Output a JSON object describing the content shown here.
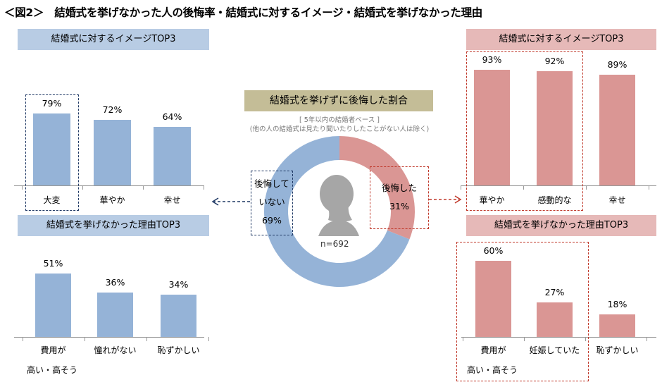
{
  "title": "＜図2＞　結婚式を挙げなかった人の後悔率・結婚式に対するイメージ・結婚式を挙げなかった理由",
  "colors": {
    "blue": "#95b3d7",
    "red": "#da9694",
    "blue_header": "#b8cce4",
    "red_header": "#e6b9b8",
    "center_header": "#c4bd97"
  },
  "center": {
    "title": "結婚式を挙げずに後悔した割合",
    "sub1": "[ 5年以内の結婚者ベース ]",
    "sub2": "(他の人の結婚式は見たり聞いたりしたことがない人は除く)",
    "n": "n=692",
    "icon": "woman-silhouette-icon",
    "not_regret": {
      "l1": "後悔して",
      "l2": "いない",
      "pct": "69%"
    },
    "regret": {
      "l1": "後悔した",
      "pct": "31%"
    }
  },
  "chart_data": [
    {
      "id": "left-image",
      "type": "bar",
      "title": "結婚式に対するイメージTOP3",
      "categories": [
        "大変",
        "華やか",
        "幸せ"
      ],
      "values": [
        79,
        72,
        64
      ],
      "labels": [
        "79%",
        "72%",
        "64%"
      ],
      "group": "後悔していない"
    },
    {
      "id": "left-reason",
      "type": "bar",
      "title": "結婚式を挙げなかった理由TOP3",
      "categories": [
        "費用が\n高い・高そう",
        "憧れがない",
        "恥ずかしい"
      ],
      "values": [
        51,
        36,
        34
      ],
      "labels": [
        "51%",
        "36%",
        "34%"
      ],
      "group": "後悔していない"
    },
    {
      "id": "right-image",
      "type": "bar",
      "title": "結婚式に対するイメージTOP3",
      "categories": [
        "華やか",
        "感動的な",
        "幸せ"
      ],
      "values": [
        93,
        92,
        89
      ],
      "labels": [
        "93%",
        "92%",
        "89%"
      ],
      "group": "後悔した"
    },
    {
      "id": "right-reason",
      "type": "bar",
      "title": "結婚式を挙げなかった理由TOP3",
      "categories": [
        "費用が\n高い・高そう",
        "妊娠していた",
        "恥ずかしい"
      ],
      "values": [
        60,
        27,
        18
      ],
      "labels": [
        "60%",
        "27%",
        "18%"
      ],
      "group": "後悔した"
    },
    {
      "id": "donut",
      "type": "pie",
      "categories": [
        "後悔した",
        "後悔していない"
      ],
      "values": [
        31,
        69
      ]
    }
  ]
}
